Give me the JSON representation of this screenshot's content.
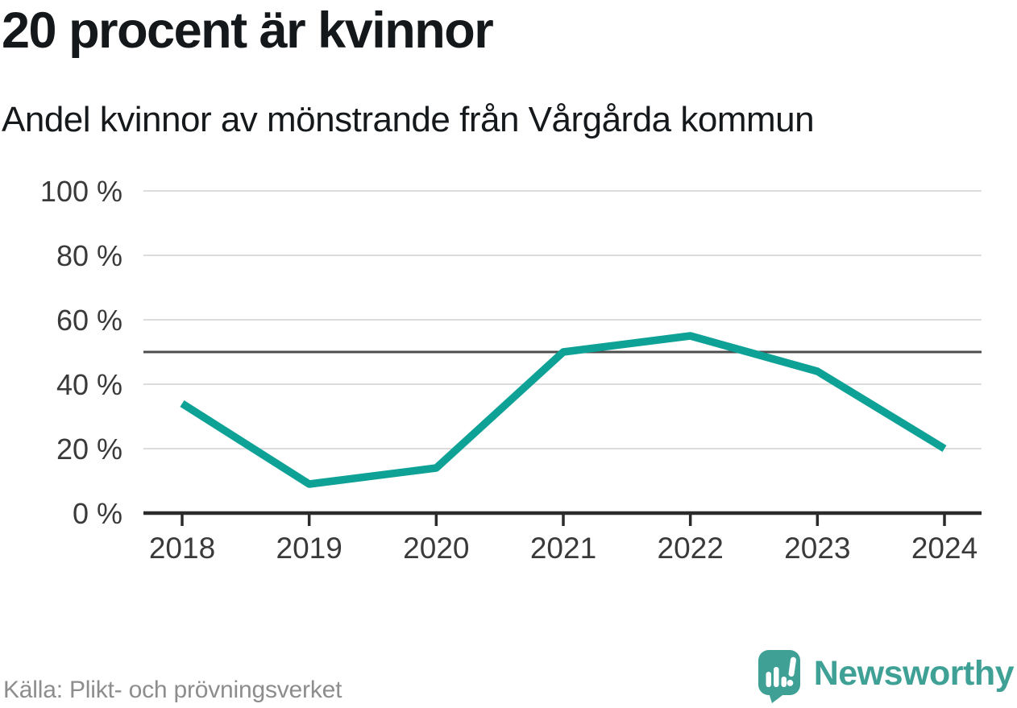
{
  "chart_data": {
    "type": "line",
    "title": "20 procent är kvinnor",
    "subtitle": "Andel kvinnor av mönstrande från Vårgårda kommun",
    "source": "Källa: Plikt- och prövningsverket",
    "x": [
      "2018",
      "2019",
      "2020",
      "2021",
      "2022",
      "2023",
      "2024"
    ],
    "values": [
      34,
      9,
      14,
      50,
      55,
      44,
      20
    ],
    "unit": "%",
    "ylim": [
      0,
      100
    ],
    "yticks": [
      {
        "value": 0,
        "label": "0 %"
      },
      {
        "value": 20,
        "label": "20 %"
      },
      {
        "value": 40,
        "label": "40 %"
      },
      {
        "value": 60,
        "label": "60 %"
      },
      {
        "value": 80,
        "label": "80 %"
      },
      {
        "value": 100,
        "label": "100 %"
      }
    ],
    "reference_line": 50,
    "grid": true,
    "legend_position": "none",
    "colors": {
      "line": "#0ea297",
      "grid": "#dcdcdc",
      "reference": "#4d4d4d",
      "axis": "#2b2b2b",
      "tick_label": "#3a3a3a"
    }
  },
  "brand": {
    "name": "Newsworthy",
    "color": "#3fa095"
  }
}
